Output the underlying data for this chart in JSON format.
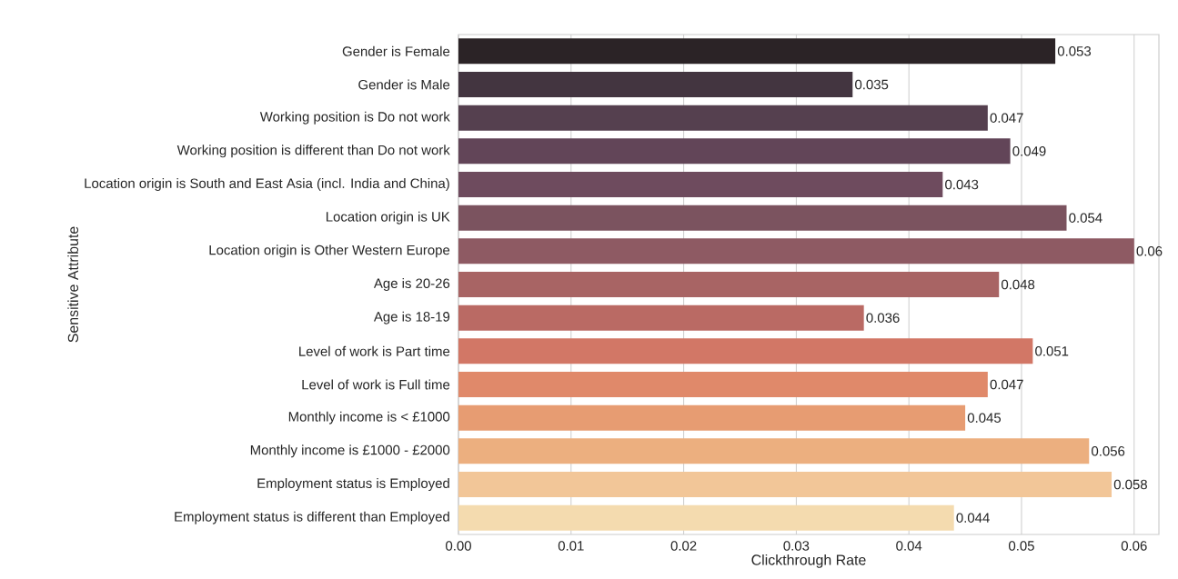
{
  "chart_data": {
    "type": "bar",
    "orientation": "horizontal",
    "categories": [
      "Gender is Female",
      "Gender is Male",
      "Working position is Do not work",
      "Working position is different than Do not work",
      "Location origin is South and East Asia (incl. India and China)",
      "Location origin is UK",
      "Location origin is Other Western Europe",
      "Age is 20-26",
      "Age is 18-19",
      "Level of work is Part time",
      "Level of work is Full time",
      "Monthly income is < £1000",
      "Monthly income is £1000 - £2000",
      "Employment status is Employed",
      "Employment status is different than Employed"
    ],
    "values": [
      0.053,
      0.035,
      0.047,
      0.049,
      0.043,
      0.054,
      0.06,
      0.048,
      0.036,
      0.051,
      0.047,
      0.045,
      0.056,
      0.058,
      0.044
    ],
    "colors": [
      "#2b2326",
      "#433540",
      "#55404f",
      "#624558",
      "#6e4b5e",
      "#7b535f",
      "#8e5a63",
      "#a86464",
      "#ba6a64",
      "#d27766",
      "#e0896a",
      "#e79c72",
      "#ecaf7f",
      "#f2c698",
      "#f4dbaf"
    ],
    "data_labels": true,
    "xlabel": "Clickthrough Rate",
    "ylabel": "Sensitive Attribute",
    "xlim": [
      0,
      0.0622
    ],
    "xticks": [
      {
        "value": 0,
        "label": "0.00"
      },
      {
        "value": 0.01,
        "label": "0.01"
      },
      {
        "value": 0.02,
        "label": "0.02"
      },
      {
        "value": 0.03,
        "label": "0.03"
      },
      {
        "value": 0.04,
        "label": "0.04"
      },
      {
        "value": 0.05,
        "label": "0.05"
      },
      {
        "value": 0.06,
        "label": "0.06"
      }
    ],
    "grid": "x"
  }
}
